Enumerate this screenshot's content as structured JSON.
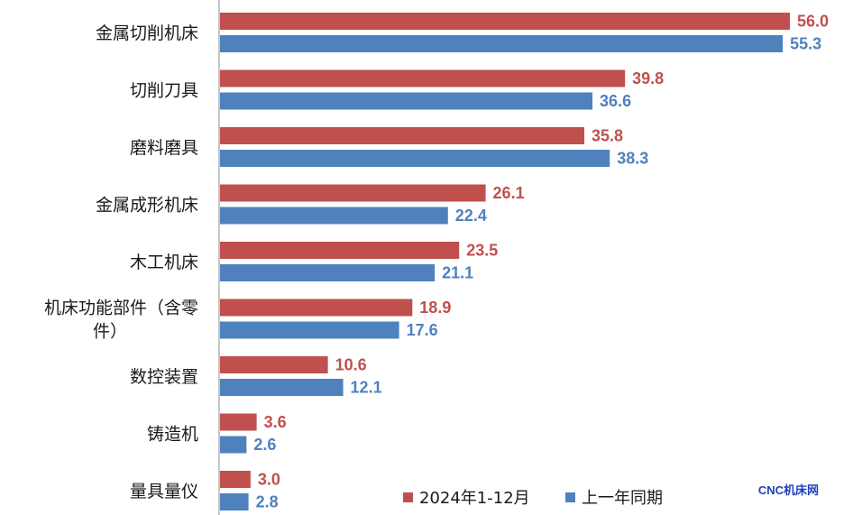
{
  "chart_data": {
    "type": "bar",
    "orientation": "horizontal",
    "categories": [
      "金属切削机床",
      "切削刀具",
      "磨料磨具",
      "金属成形机床",
      "木工机床",
      "机床功能部件（含零件）",
      "数控装置",
      "铸造机",
      "量具量仪"
    ],
    "category_display": [
      [
        "金属切削机床"
      ],
      [
        "切削刀具"
      ],
      [
        "磨料磨具"
      ],
      [
        "金属成形机床"
      ],
      [
        "木工机床"
      ],
      [
        "机床功能部件（含零",
        "件）"
      ],
      [
        "数控装置"
      ],
      [
        "铸造机"
      ],
      [
        "量具量仪"
      ]
    ],
    "series": [
      {
        "name": "2024年1-12月",
        "color": "#c0504d",
        "values": [
          56.0,
          39.8,
          35.8,
          26.1,
          23.5,
          18.9,
          10.6,
          3.6,
          3.0
        ],
        "labels": [
          "56.0",
          "39.8",
          "35.8",
          "26.1",
          "23.5",
          "18.9",
          "10.6",
          "3.6",
          "3.0"
        ]
      },
      {
        "name": "上一年同期",
        "color": "#4f81bd",
        "values": [
          55.3,
          36.6,
          38.3,
          22.4,
          21.1,
          17.6,
          12.1,
          2.6,
          2.8
        ],
        "labels": [
          "55.3",
          "36.6",
          "38.3",
          "22.4",
          "21.1",
          "17.6",
          "12.1",
          "2.6",
          "2.8"
        ]
      }
    ],
    "xlim": [
      0,
      56.0
    ],
    "grid": false,
    "legend_position": "bottom-right"
  },
  "watermark": "CNC机床网"
}
